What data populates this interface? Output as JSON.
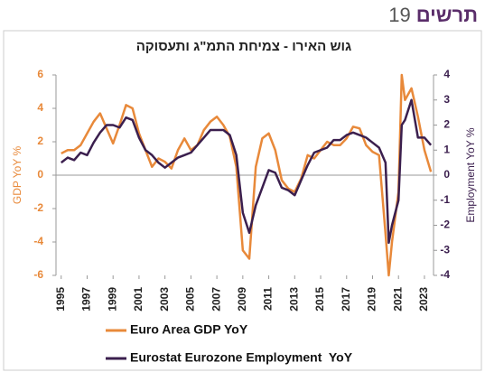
{
  "header": {
    "label": "תרשים",
    "number": "19"
  },
  "chart_data": {
    "type": "line",
    "title": "גוש האירו - צמיחת התמ\"ג ותעסוקה",
    "ylabel": "GDP YoY %",
    "y2label": "Employment YoY %",
    "xlim": [
      1994.6,
      2023.7
    ],
    "xticks": [
      1995,
      1997,
      1999,
      2001,
      2003,
      2005,
      2007,
      2009,
      2011,
      2013,
      2015,
      2017,
      2019,
      2021,
      2023
    ],
    "ylim": [
      -6,
      6
    ],
    "yticks": [
      -6,
      -4,
      -2,
      0,
      2,
      4,
      6
    ],
    "y2lim": [
      -4,
      4
    ],
    "y2ticks": [
      -4,
      -3,
      -2,
      -1,
      0,
      1,
      2,
      3,
      4
    ],
    "legend": "bottom",
    "x": [
      1995,
      1995.5,
      1996,
      1996.5,
      1997,
      1997.5,
      1998,
      1998.5,
      1999,
      1999.5,
      2000,
      2000.5,
      2001,
      2001.5,
      2002,
      2002.5,
      2003,
      2003.5,
      2004,
      2004.5,
      2005,
      2005.5,
      2006,
      2006.5,
      2007,
      2007.5,
      2008,
      2008.5,
      2009,
      2009.5,
      2010,
      2010.5,
      2011,
      2011.5,
      2012,
      2012.5,
      2013,
      2013.5,
      2014,
      2014.5,
      2015,
      2015.5,
      2016,
      2016.5,
      2017,
      2017.5,
      2018,
      2018.5,
      2019,
      2019.5,
      2020,
      2020.25,
      2020.5,
      2021,
      2021.25,
      2021.5,
      2022,
      2022.5,
      2023,
      2023.5
    ],
    "series": [
      {
        "name": "Euro Area GDP YoY",
        "color": "#e8893a",
        "values": [
          1.3,
          1.5,
          1.5,
          1.8,
          2.5,
          3.2,
          3.7,
          2.8,
          1.9,
          3.0,
          4.2,
          4.0,
          2.5,
          1.5,
          0.5,
          1.0,
          0.8,
          0.4,
          1.5,
          2.2,
          1.5,
          1.8,
          2.7,
          3.2,
          3.5,
          3.0,
          2.3,
          0.5,
          -4.5,
          -5.0,
          0.5,
          2.2,
          2.5,
          1.5,
          -0.3,
          -0.8,
          -1.0,
          -0.2,
          1.2,
          1.0,
          1.5,
          2.0,
          1.8,
          1.8,
          2.2,
          2.9,
          2.8,
          1.8,
          1.4,
          1.2,
          -3.5,
          -6,
          -4,
          -1,
          6,
          4.5,
          5.2,
          3.5,
          1.5,
          0.2
        ]
      },
      {
        "name": "Eurostat Eurozone Employment  YoY",
        "color": "#3b1f4e",
        "axis": "y2",
        "values": [
          0.5,
          0.7,
          0.6,
          0.9,
          0.8,
          1.3,
          1.7,
          2.0,
          2.0,
          1.9,
          2.3,
          2.2,
          1.5,
          1.0,
          0.8,
          0.5,
          0.3,
          0.5,
          0.7,
          0.8,
          0.9,
          1.2,
          1.5,
          1.8,
          1.8,
          1.8,
          1.6,
          0.8,
          -1.5,
          -2.3,
          -1.2,
          -0.5,
          0.2,
          0.1,
          -0.5,
          -0.6,
          -0.8,
          -0.2,
          0.4,
          0.9,
          1.0,
          1.1,
          1.4,
          1.4,
          1.6,
          1.7,
          1.6,
          1.5,
          1.3,
          1.1,
          0.5,
          -2.7,
          -2.0,
          -1.0,
          2.0,
          2.2,
          3.0,
          1.5,
          1.5,
          1.2
        ]
      }
    ]
  }
}
